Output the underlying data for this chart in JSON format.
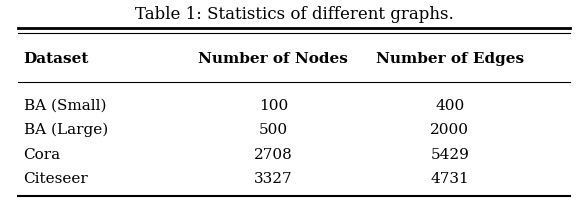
{
  "title": "Table 1: Statistics of different graphs.",
  "columns": [
    "Dataset",
    "Number of Nodes",
    "Number of Edges"
  ],
  "rows": [
    [
      "BA (Small)",
      "100",
      "400"
    ],
    [
      "BA (Large)",
      "500",
      "2000"
    ],
    [
      "Cora",
      "2708",
      "5429"
    ],
    [
      "Citeseer",
      "3327",
      "4731"
    ]
  ],
  "title_fontsize": 12,
  "header_fontsize": 11,
  "body_fontsize": 11,
  "background_color": "#ffffff",
  "text_color": "#000000",
  "line_color": "#000000",
  "fig_width": 5.88,
  "fig_height": 2.02,
  "dpi": 100
}
